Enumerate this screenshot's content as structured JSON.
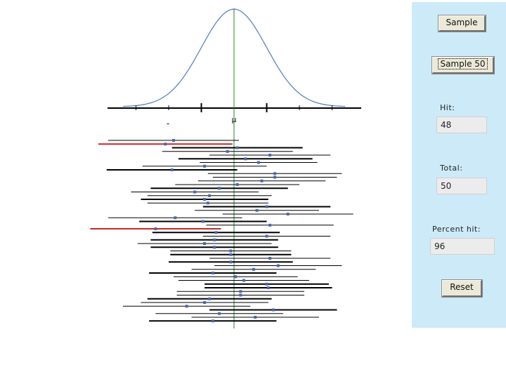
{
  "controls": {
    "sample_label": "Sample",
    "sample50_label": "Sample 50",
    "hit_label": "Hit:",
    "hit_value": "48",
    "total_label": "Total:",
    "total_value": "50",
    "percent_label": "Percent hit:",
    "percent_value": "96",
    "reset_label": "Reset"
  },
  "chart_data": {
    "type": "line",
    "title": "",
    "distribution": "normal",
    "mean_label": "μ",
    "left_tick_label": "-",
    "x_range_sd": [
      -3.4,
      3.4
    ],
    "tick_positions_sd": [
      -3,
      -2,
      -1,
      0,
      1,
      2,
      3
    ],
    "interval_count": 50,
    "intervals": [
      {
        "mean": -1.85,
        "half": 2.0,
        "thick": false,
        "miss": false
      },
      {
        "mean": -2.1,
        "half": 2.05,
        "thick": false,
        "miss": true
      },
      {
        "mean": 0.1,
        "half": 2.0,
        "thick": true,
        "miss": false
      },
      {
        "mean": -0.2,
        "half": 2.0,
        "thick": false,
        "miss": false
      },
      {
        "mean": 1.1,
        "half": 1.85,
        "thick": false,
        "miss": false
      },
      {
        "mean": 0.35,
        "half": 2.05,
        "thick": true,
        "miss": false
      },
      {
        "mean": 0.75,
        "half": 1.8,
        "thick": false,
        "miss": false
      },
      {
        "mean": -0.9,
        "half": 1.9,
        "thick": false,
        "miss": false
      },
      {
        "mean": -1.9,
        "half": 2.0,
        "thick": true,
        "miss": false
      },
      {
        "mean": 1.25,
        "half": 2.05,
        "thick": false,
        "miss": false
      },
      {
        "mean": 1.25,
        "half": 1.9,
        "thick": false,
        "miss": false
      },
      {
        "mean": 0.85,
        "half": 1.95,
        "thick": false,
        "miss": false
      },
      {
        "mean": 0.1,
        "half": 1.9,
        "thick": false,
        "miss": false
      },
      {
        "mean": -0.45,
        "half": 2.1,
        "thick": true,
        "miss": false
      },
      {
        "mean": -1.2,
        "half": 1.95,
        "thick": false,
        "miss": false
      },
      {
        "mean": -0.75,
        "half": 1.9,
        "thick": false,
        "miss": false
      },
      {
        "mean": -0.9,
        "half": 1.95,
        "thick": true,
        "miss": false
      },
      {
        "mean": -0.8,
        "half": 1.85,
        "thick": false,
        "miss": false
      },
      {
        "mean": 1.0,
        "half": 1.95,
        "thick": true,
        "miss": false
      },
      {
        "mean": 0.7,
        "half": 1.9,
        "thick": false,
        "miss": false
      },
      {
        "mean": 1.65,
        "half": 2.0,
        "thick": false,
        "miss": false
      },
      {
        "mean": -1.8,
        "half": 2.05,
        "thick": false,
        "miss": false
      },
      {
        "mean": -0.95,
        "half": 1.95,
        "thick": true,
        "miss": false
      },
      {
        "mean": 1.1,
        "half": 1.95,
        "thick": false,
        "miss": false
      },
      {
        "mean": -2.4,
        "half": 2.0,
        "thick": false,
        "miss": true
      },
      {
        "mean": -0.55,
        "half": 1.95,
        "thick": true,
        "miss": false
      },
      {
        "mean": 1.0,
        "half": 1.95,
        "thick": false,
        "miss": false
      },
      {
        "mean": -0.6,
        "half": 1.95,
        "thick": true,
        "miss": false
      },
      {
        "mean": -0.9,
        "half": 2.05,
        "thick": false,
        "miss": false
      },
      {
        "mean": -0.6,
        "half": 1.95,
        "thick": true,
        "miss": false
      },
      {
        "mean": -0.1,
        "half": 1.85,
        "thick": false,
        "miss": false
      },
      {
        "mean": -0.1,
        "half": 1.85,
        "thick": true,
        "miss": false
      },
      {
        "mean": 1.1,
        "half": 1.85,
        "thick": false,
        "miss": false
      },
      {
        "mean": -0.1,
        "half": 1.9,
        "thick": true,
        "miss": false
      },
      {
        "mean": 1.35,
        "half": 1.95,
        "thick": false,
        "miss": false
      },
      {
        "mean": 0.6,
        "half": 1.9,
        "thick": false,
        "miss": false
      },
      {
        "mean": -0.65,
        "half": 1.95,
        "thick": true,
        "miss": false
      },
      {
        "mean": 0.05,
        "half": 1.9,
        "thick": false,
        "miss": false
      },
      {
        "mean": 0.3,
        "half": 2.0,
        "thick": false,
        "miss": false
      },
      {
        "mean": 1.0,
        "half": 1.9,
        "thick": true,
        "miss": false
      },
      {
        "mean": 1.05,
        "half": 1.95,
        "thick": true,
        "miss": false
      },
      {
        "mean": 0.2,
        "half": 1.95,
        "thick": false,
        "miss": false
      },
      {
        "mean": 0.2,
        "half": 1.95,
        "thick": false,
        "miss": false
      },
      {
        "mean": -0.75,
        "half": 1.9,
        "thick": true,
        "miss": false
      },
      {
        "mean": -0.9,
        "half": 1.95,
        "thick": false,
        "miss": false
      },
      {
        "mean": -1.45,
        "half": 1.95,
        "thick": false,
        "miss": false
      },
      {
        "mean": 1.2,
        "half": 1.95,
        "thick": true,
        "miss": false
      },
      {
        "mean": -0.45,
        "half": 1.95,
        "thick": false,
        "miss": false
      },
      {
        "mean": 0.65,
        "half": 1.95,
        "thick": false,
        "miss": false
      },
      {
        "mean": -0.65,
        "half": 1.95,
        "thick": true,
        "miss": false
      }
    ],
    "colors": {
      "curve": "#5b84c4",
      "mean_line": "#2e7d32",
      "interval": "#000000",
      "miss": "#c62828",
      "point": "#4a68b0",
      "panel": "#cdeaf8"
    }
  }
}
